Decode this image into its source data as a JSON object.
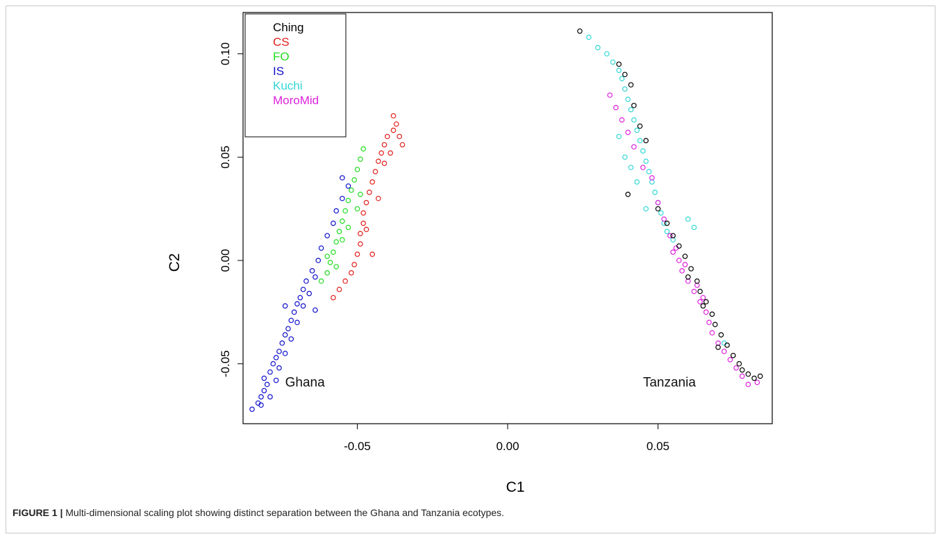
{
  "chart_data": {
    "type": "scatter",
    "xlabel": "C1",
    "ylabel": "C2",
    "xlim": [
      -0.088,
      0.088
    ],
    "ylim": [
      -0.079,
      0.12
    ],
    "x_ticks": [
      -0.05,
      0.0,
      0.05
    ],
    "x_tick_labels": [
      "-0.05",
      "0.00",
      "0.05"
    ],
    "y_ticks": [
      -0.05,
      0.0,
      0.05,
      0.1
    ],
    "y_tick_labels": [
      "-0.05",
      "0.00",
      "0.05",
      "0.10"
    ],
    "grid": false,
    "legend_position": "top-left",
    "legend": [
      {
        "name": "Ching",
        "color": "#000000"
      },
      {
        "name": "CS",
        "color": "#e0201c"
      },
      {
        "name": "FO",
        "color": "#22dd22"
      },
      {
        "name": "IS",
        "color": "#1010cc"
      },
      {
        "name": "Kuchi",
        "color": "#33d6d6"
      },
      {
        "name": "MoroMid",
        "color": "#dd22dd"
      }
    ],
    "annotations": [
      {
        "text": "Ghana",
        "x": -0.074,
        "y": -0.061
      },
      {
        "text": "Tanzania",
        "x": 0.045,
        "y": -0.061
      }
    ],
    "series": [
      {
        "name": "IS",
        "color": "#1010cc",
        "points": [
          [
            -0.085,
            -0.072
          ],
          [
            -0.083,
            -0.069
          ],
          [
            -0.082,
            -0.066
          ],
          [
            -0.081,
            -0.063
          ],
          [
            -0.08,
            -0.06
          ],
          [
            -0.081,
            -0.057
          ],
          [
            -0.079,
            -0.054
          ],
          [
            -0.078,
            -0.05
          ],
          [
            -0.077,
            -0.047
          ],
          [
            -0.076,
            -0.044
          ],
          [
            -0.075,
            -0.04
          ],
          [
            -0.074,
            -0.036
          ],
          [
            -0.073,
            -0.033
          ],
          [
            -0.072,
            -0.029
          ],
          [
            -0.071,
            -0.025
          ],
          [
            -0.07,
            -0.021
          ],
          [
            -0.069,
            -0.018
          ],
          [
            -0.068,
            -0.014
          ],
          [
            -0.067,
            -0.01
          ],
          [
            -0.065,
            -0.005
          ],
          [
            -0.063,
            0.0
          ],
          [
            -0.062,
            0.006
          ],
          [
            -0.06,
            0.012
          ],
          [
            -0.058,
            0.018
          ],
          [
            -0.057,
            0.024
          ],
          [
            -0.055,
            0.03
          ],
          [
            -0.053,
            0.036
          ],
          [
            -0.055,
            0.04
          ],
          [
            -0.074,
            -0.022
          ],
          [
            -0.064,
            -0.024
          ],
          [
            -0.082,
            -0.07
          ],
          [
            -0.079,
            -0.066
          ],
          [
            -0.077,
            -0.058
          ],
          [
            -0.076,
            -0.052
          ],
          [
            -0.074,
            -0.045
          ],
          [
            -0.072,
            -0.038
          ],
          [
            -0.07,
            -0.03
          ],
          [
            -0.068,
            -0.022
          ],
          [
            -0.066,
            -0.016
          ],
          [
            -0.064,
            -0.008
          ]
        ]
      },
      {
        "name": "FO",
        "color": "#22dd22",
        "points": [
          [
            -0.062,
            -0.01
          ],
          [
            -0.06,
            -0.006
          ],
          [
            -0.059,
            -0.001
          ],
          [
            -0.058,
            0.004
          ],
          [
            -0.057,
            0.009
          ],
          [
            -0.056,
            0.014
          ],
          [
            -0.055,
            0.019
          ],
          [
            -0.054,
            0.024
          ],
          [
            -0.053,
            0.029
          ],
          [
            -0.052,
            0.034
          ],
          [
            -0.051,
            0.039
          ],
          [
            -0.05,
            0.044
          ],
          [
            -0.049,
            0.049
          ],
          [
            -0.048,
            0.054
          ],
          [
            -0.06,
            0.002
          ],
          [
            -0.057,
            -0.003
          ],
          [
            -0.055,
            0.01
          ],
          [
            -0.053,
            0.016
          ],
          [
            -0.05,
            0.025
          ],
          [
            -0.049,
            0.032
          ]
        ]
      },
      {
        "name": "CS",
        "color": "#e0201c",
        "points": [
          [
            -0.056,
            -0.014
          ],
          [
            -0.054,
            -0.01
          ],
          [
            -0.052,
            -0.006
          ],
          [
            -0.051,
            -0.002
          ],
          [
            -0.05,
            0.003
          ],
          [
            -0.049,
            0.008
          ],
          [
            -0.049,
            0.013
          ],
          [
            -0.048,
            0.018
          ],
          [
            -0.048,
            0.023
          ],
          [
            -0.047,
            0.028
          ],
          [
            -0.046,
            0.033
          ],
          [
            -0.045,
            0.038
          ],
          [
            -0.044,
            0.043
          ],
          [
            -0.043,
            0.048
          ],
          [
            -0.042,
            0.052
          ],
          [
            -0.041,
            0.056
          ],
          [
            -0.04,
            0.06
          ],
          [
            -0.038,
            0.063
          ],
          [
            -0.037,
            0.066
          ],
          [
            -0.036,
            0.06
          ],
          [
            -0.035,
            0.056
          ],
          [
            -0.038,
            0.07
          ],
          [
            -0.047,
            0.015
          ],
          [
            -0.045,
            0.003
          ],
          [
            -0.058,
            -0.018
          ],
          [
            -0.043,
            0.03
          ],
          [
            -0.041,
            0.047
          ],
          [
            -0.039,
            0.052
          ]
        ]
      },
      {
        "name": "Kuchi",
        "color": "#33d6d6",
        "points": [
          [
            0.027,
            0.108
          ],
          [
            0.03,
            0.103
          ],
          [
            0.033,
            0.1
          ],
          [
            0.035,
            0.096
          ],
          [
            0.037,
            0.092
          ],
          [
            0.038,
            0.088
          ],
          [
            0.039,
            0.083
          ],
          [
            0.04,
            0.078
          ],
          [
            0.041,
            0.073
          ],
          [
            0.042,
            0.068
          ],
          [
            0.043,
            0.063
          ],
          [
            0.044,
            0.058
          ],
          [
            0.045,
            0.053
          ],
          [
            0.046,
            0.048
          ],
          [
            0.047,
            0.043
          ],
          [
            0.048,
            0.038
          ],
          [
            0.049,
            0.033
          ],
          [
            0.05,
            0.028
          ],
          [
            0.051,
            0.023
          ],
          [
            0.052,
            0.018
          ],
          [
            0.053,
            0.014
          ],
          [
            0.055,
            0.01
          ],
          [
            0.037,
            0.06
          ],
          [
            0.039,
            0.05
          ],
          [
            0.041,
            0.045
          ],
          [
            0.043,
            0.038
          ],
          [
            0.046,
            0.025
          ],
          [
            0.06,
            0.02
          ],
          [
            0.062,
            0.016
          ],
          [
            0.072,
            -0.04
          ]
        ]
      },
      {
        "name": "MoroMid",
        "color": "#dd22dd",
        "points": [
          [
            0.034,
            0.08
          ],
          [
            0.036,
            0.074
          ],
          [
            0.038,
            0.068
          ],
          [
            0.04,
            0.062
          ],
          [
            0.042,
            0.055
          ],
          [
            0.045,
            0.045
          ],
          [
            0.048,
            0.04
          ],
          [
            0.05,
            0.028
          ],
          [
            0.052,
            0.02
          ],
          [
            0.054,
            0.012
          ],
          [
            0.055,
            0.004
          ],
          [
            0.057,
            0.0
          ],
          [
            0.058,
            -0.005
          ],
          [
            0.06,
            -0.01
          ],
          [
            0.062,
            -0.015
          ],
          [
            0.064,
            -0.02
          ],
          [
            0.066,
            -0.025
          ],
          [
            0.067,
            -0.03
          ],
          [
            0.068,
            -0.035
          ],
          [
            0.07,
            -0.04
          ],
          [
            0.072,
            -0.044
          ],
          [
            0.074,
            -0.048
          ],
          [
            0.076,
            -0.052
          ],
          [
            0.078,
            -0.056
          ],
          [
            0.08,
            -0.06
          ],
          [
            0.083,
            -0.059
          ],
          [
            0.056,
            0.006
          ],
          [
            0.059,
            -0.002
          ],
          [
            0.063,
            -0.012
          ],
          [
            0.065,
            -0.018
          ]
        ]
      },
      {
        "name": "Ching",
        "color": "#000000",
        "points": [
          [
            0.024,
            0.111
          ],
          [
            0.037,
            0.095
          ],
          [
            0.039,
            0.09
          ],
          [
            0.041,
            0.085
          ],
          [
            0.042,
            0.075
          ],
          [
            0.044,
            0.065
          ],
          [
            0.046,
            0.058
          ],
          [
            0.04,
            0.032
          ],
          [
            0.05,
            0.025
          ],
          [
            0.053,
            0.018
          ],
          [
            0.055,
            0.012
          ],
          [
            0.057,
            0.007
          ],
          [
            0.059,
            0.002
          ],
          [
            0.061,
            -0.004
          ],
          [
            0.063,
            -0.01
          ],
          [
            0.064,
            -0.015
          ],
          [
            0.066,
            -0.02
          ],
          [
            0.068,
            -0.026
          ],
          [
            0.069,
            -0.031
          ],
          [
            0.071,
            -0.036
          ],
          [
            0.073,
            -0.041
          ],
          [
            0.075,
            -0.046
          ],
          [
            0.077,
            -0.05
          ],
          [
            0.078,
            -0.053
          ],
          [
            0.08,
            -0.055
          ],
          [
            0.082,
            -0.057
          ],
          [
            0.084,
            -0.056
          ],
          [
            0.07,
            -0.042
          ],
          [
            0.06,
            -0.008
          ],
          [
            0.065,
            -0.022
          ]
        ]
      }
    ]
  },
  "caption": {
    "label": "FIGURE 1 |",
    "text": " Multi-dimensional scaling plot showing distinct separation between the Ghana and Tanzania ecotypes."
  }
}
